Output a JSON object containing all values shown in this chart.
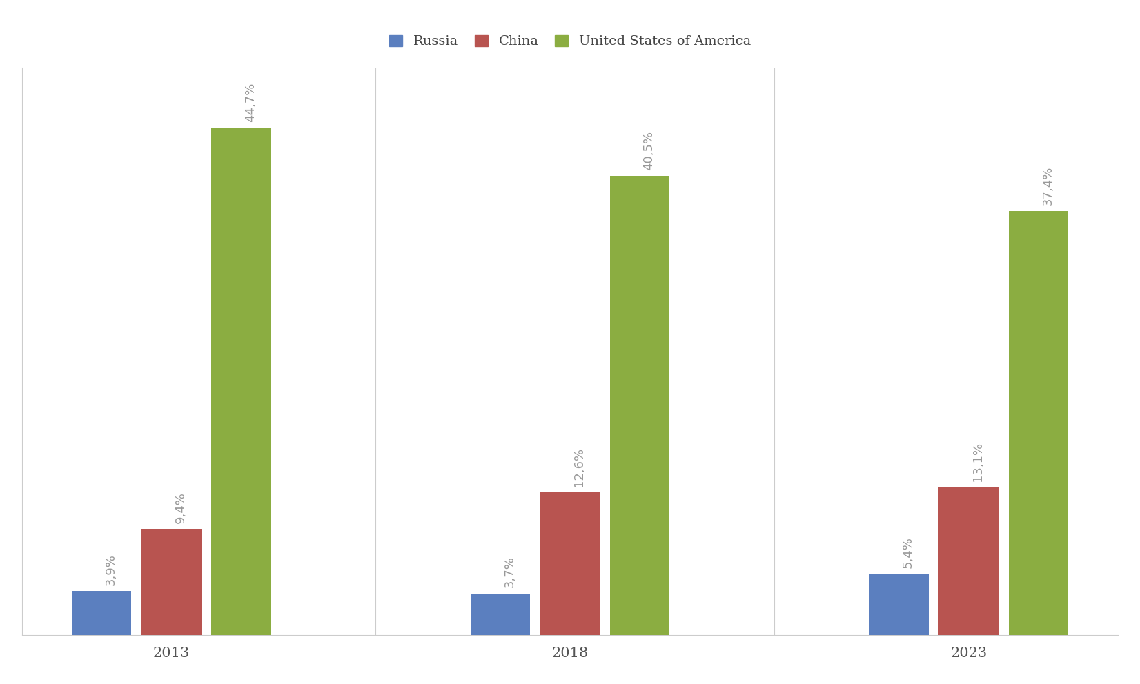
{
  "years": [
    "2013",
    "2018",
    "2023"
  ],
  "series": {
    "Russia": [
      3.9,
      3.7,
      5.4
    ],
    "China": [
      9.4,
      12.6,
      13.1
    ],
    "United States of America": [
      44.7,
      40.5,
      37.4
    ]
  },
  "labels": {
    "Russia": [
      "3,9%",
      "3,7%",
      "5,4%"
    ],
    "China": [
      "9,4%",
      "12,6%",
      "13,1%"
    ],
    "United States of America": [
      "44,7%",
      "40,5%",
      "37,4%"
    ]
  },
  "colors": {
    "Russia": "#5B7FBF",
    "China": "#B85450",
    "United States of America": "#8BAD41"
  },
  "background_color": "#FFFFFF",
  "ylim": [
    0,
    50
  ],
  "bar_width": 0.18,
  "legend_fontsize": 14,
  "tick_fontsize": 15,
  "label_fontsize": 13,
  "label_color": "#999999"
}
